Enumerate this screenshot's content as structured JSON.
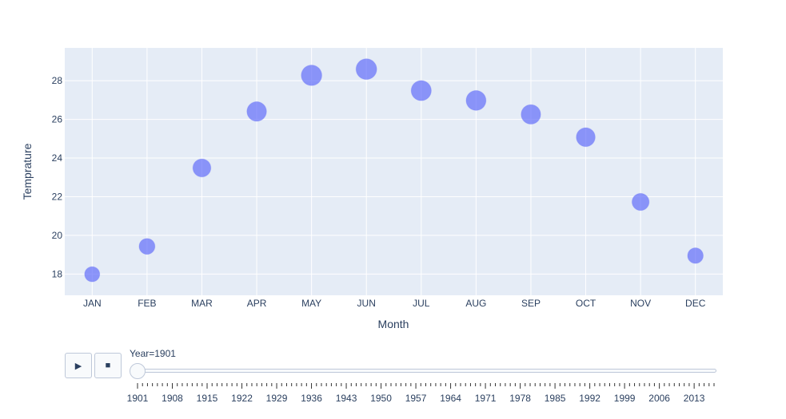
{
  "chart_data": {
    "type": "scatter",
    "xlabel": "Month",
    "ylabel": "Temprature",
    "categories": [
      "JAN",
      "FEB",
      "MAR",
      "APR",
      "MAY",
      "JUN",
      "JUL",
      "AUG",
      "SEP",
      "OCT",
      "NOV",
      "DEC"
    ],
    "values": [
      17.99,
      19.43,
      23.49,
      26.41,
      28.28,
      28.6,
      27.49,
      26.98,
      26.26,
      25.08,
      21.73,
      18.95
    ],
    "ylim": [
      16.9,
      29.7
    ],
    "yticks": [
      18,
      20,
      22,
      24,
      26,
      28
    ],
    "marker_color": "#636efa",
    "plot_bgcolor": "#e5ecf6",
    "grid": true
  },
  "animation": {
    "play_icon": "play-icon",
    "stop_icon": "stop-icon",
    "current_value_label": "Year=1901",
    "slider_value": 1901,
    "slider_range": [
      1901,
      2017
    ],
    "slider_tick_labels": [
      "1901",
      "1908",
      "1915",
      "1922",
      "1929",
      "1936",
      "1943",
      "1950",
      "1957",
      "1964",
      "1971",
      "1978",
      "1985",
      "1992",
      "1999",
      "2006",
      "2013"
    ]
  }
}
